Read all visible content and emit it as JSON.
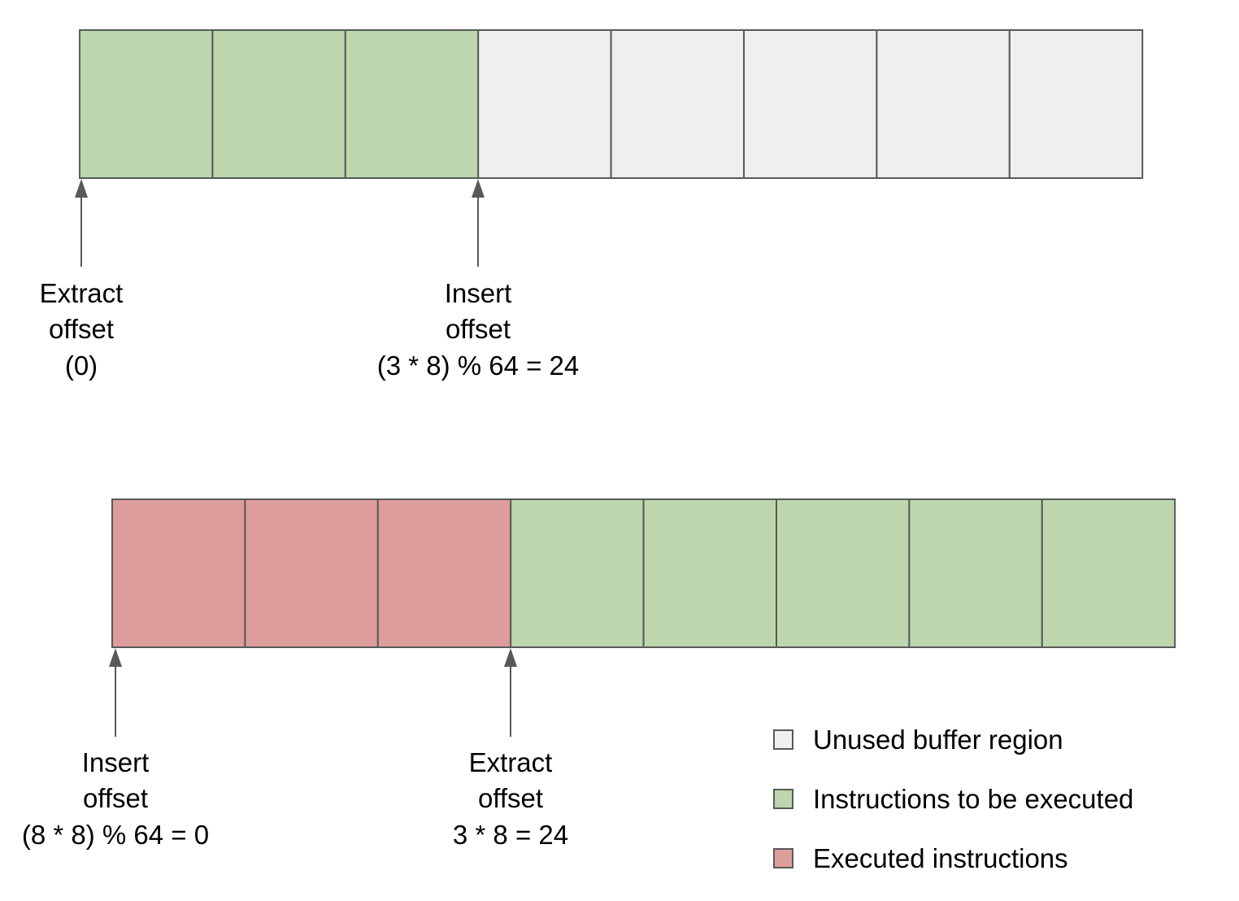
{
  "colors": {
    "unused": "#efefef",
    "pending": "#bdd6ae",
    "executed": "#dd9d9b",
    "stroke": "#595959",
    "arrow": "#595959"
  },
  "buffers": [
    {
      "slots": [
        "unused-pending",
        "pending",
        "pending",
        "unused",
        "unused",
        "unused",
        "unused",
        "unused"
      ],
      "states": [
        "pending",
        "pending",
        "pending",
        "unused",
        "unused",
        "unused",
        "unused",
        "unused"
      ],
      "pointers": [
        {
          "at_slot": 0,
          "lines": [
            "Extract",
            "offset",
            "(0)"
          ]
        },
        {
          "at_slot": 3,
          "lines": [
            "Insert",
            "offset",
            "(3 * 8) % 64 = 24"
          ]
        }
      ]
    },
    {
      "states": [
        "executed",
        "executed",
        "executed",
        "pending",
        "pending",
        "pending",
        "pending",
        "pending"
      ],
      "pointers": [
        {
          "at_slot": 0,
          "lines": [
            "Insert",
            "offset",
            "(8 * 8) % 64 = 0"
          ]
        },
        {
          "at_slot": 3,
          "lines": [
            "Extract",
            "offset",
            "3 * 8 = 24"
          ]
        }
      ]
    }
  ],
  "legend": [
    {
      "state": "unused",
      "label": "Unused buffer region"
    },
    {
      "state": "pending",
      "label": "Instructions to be executed"
    },
    {
      "state": "executed",
      "label": "Executed instructions"
    }
  ]
}
